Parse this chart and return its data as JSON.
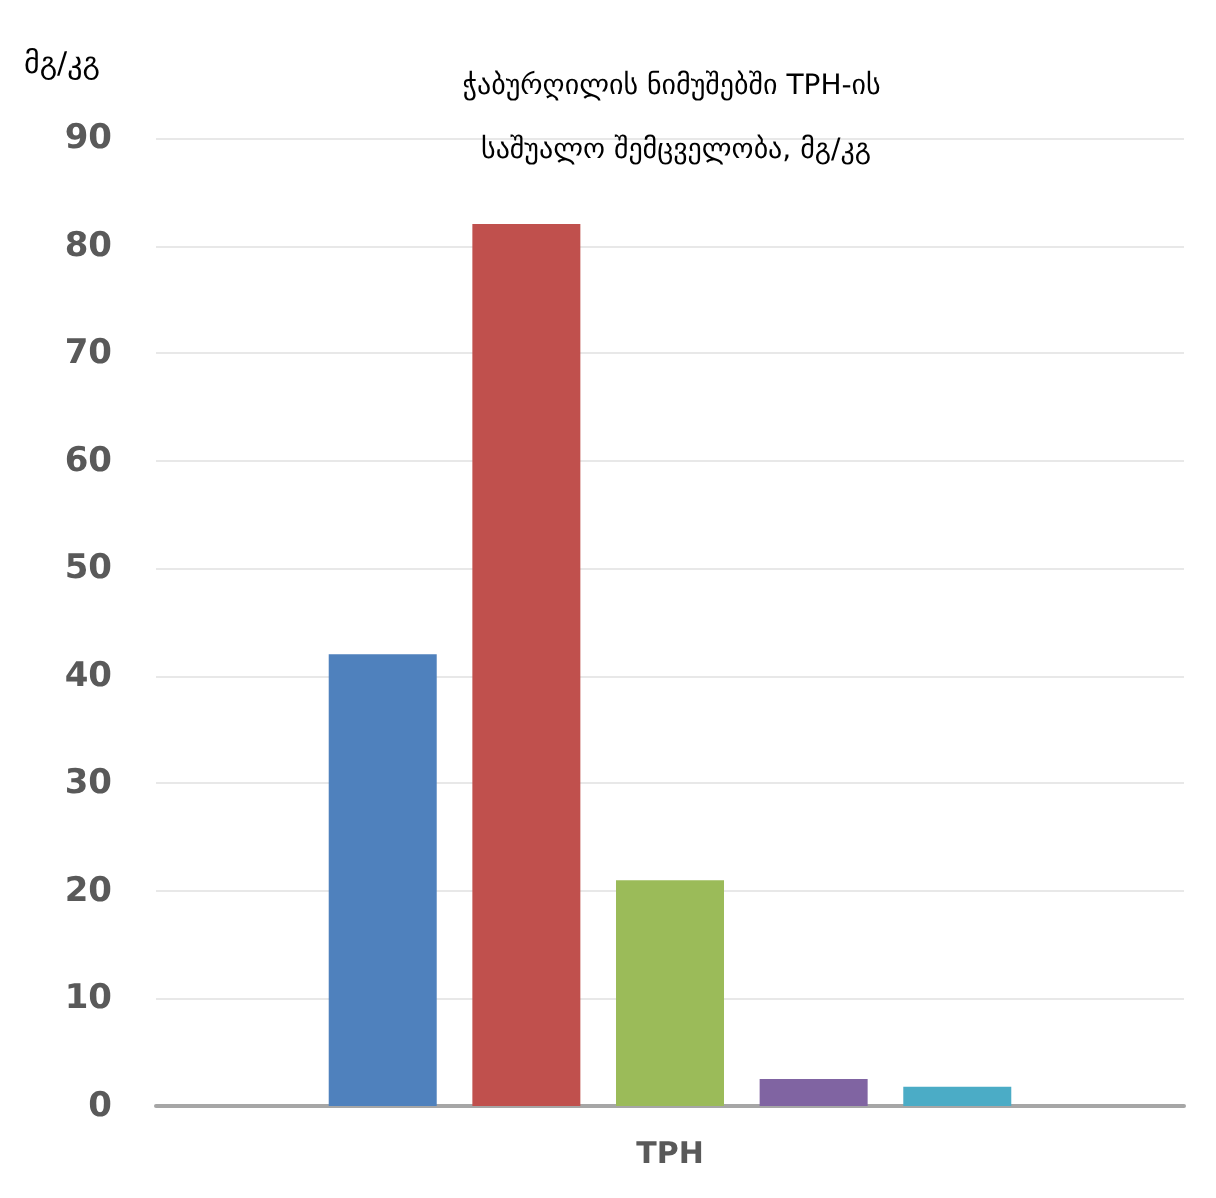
{
  "chart_data": {
    "type": "bar",
    "title": "ჭაბურღილის ნიმუშებში TPH-ის საშუალო შემცველობა, მგ/კგ",
    "ylabel": "მგ/კგ",
    "categories": [
      "TPH"
    ],
    "series": [
      {
        "color": "#4f81bd",
        "values": [
          42
        ]
      },
      {
        "color": "#c0504d",
        "values": [
          82
        ]
      },
      {
        "color": "#9bbb59",
        "values": [
          21
        ]
      },
      {
        "color": "#8064a2",
        "values": [
          2.5
        ]
      },
      {
        "color": "#4bacc6",
        "values": [
          1.8
        ]
      }
    ],
    "ylim": [
      0,
      90
    ],
    "yticks": [
      0,
      10,
      20,
      30,
      40,
      50,
      60,
      70,
      80,
      90
    ],
    "grid": "y"
  }
}
